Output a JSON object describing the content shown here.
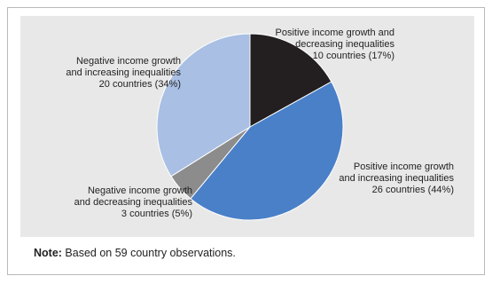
{
  "chart_data": {
    "type": "pie",
    "slices": [
      {
        "lines": [
          "Positive income growth and",
          "decreasing inequalities",
          "10 countries (17%)"
        ],
        "countries": 10,
        "percent": 17,
        "color": "#231f20"
      },
      {
        "lines": [
          "Positive income growth",
          "and increasing inequalities",
          "26 countries (44%)"
        ],
        "countries": 26,
        "percent": 44,
        "color": "#4a80c8"
      },
      {
        "lines": [
          "Negative income growth",
          "and decreasing inequalities",
          "3 countries (5%)"
        ],
        "countries": 3,
        "percent": 5,
        "color": "#8c8c8c"
      },
      {
        "lines": [
          "Negative income growth",
          "and increasing inequalities",
          "20 countries (34%)"
        ],
        "countries": 20,
        "percent": 34,
        "color": "#a9bfe3"
      }
    ],
    "slice_border_color": "#ffffff",
    "background_color": "#e8e8e8"
  },
  "note": {
    "label": "Note:",
    "text": " Based on 59 country observations."
  }
}
